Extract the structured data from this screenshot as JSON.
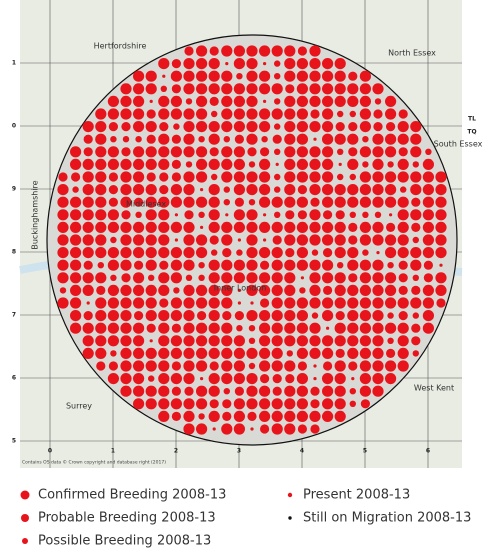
{
  "map": {
    "regions": [
      {
        "label": "Hertfordshire"
      },
      {
        "label": "North Essex"
      },
      {
        "label": "South Essex"
      },
      {
        "label": "Buckinghamshire"
      },
      {
        "label": "Middlesex"
      },
      {
        "label": "Inner London"
      },
      {
        "label": "Surrey"
      },
      {
        "label": "West Kent"
      }
    ],
    "xticks": [
      "0",
      "1",
      "2",
      "3",
      "4",
      "5",
      "6"
    ],
    "yticks": [
      "1",
      "0",
      "9",
      "8",
      "7",
      "6",
      "5"
    ],
    "grid_labels": [
      "TL",
      "TQ"
    ],
    "credit": "Contains OS data © Crown copyright and database right (2017)"
  },
  "legend": [
    "Confirmed Breeding 2008-13",
    "Probable Breeding 2008-13",
    "Possible Breeding 2008-13",
    "Present 2008-13",
    "Still on Migration 2008-13"
  ]
}
